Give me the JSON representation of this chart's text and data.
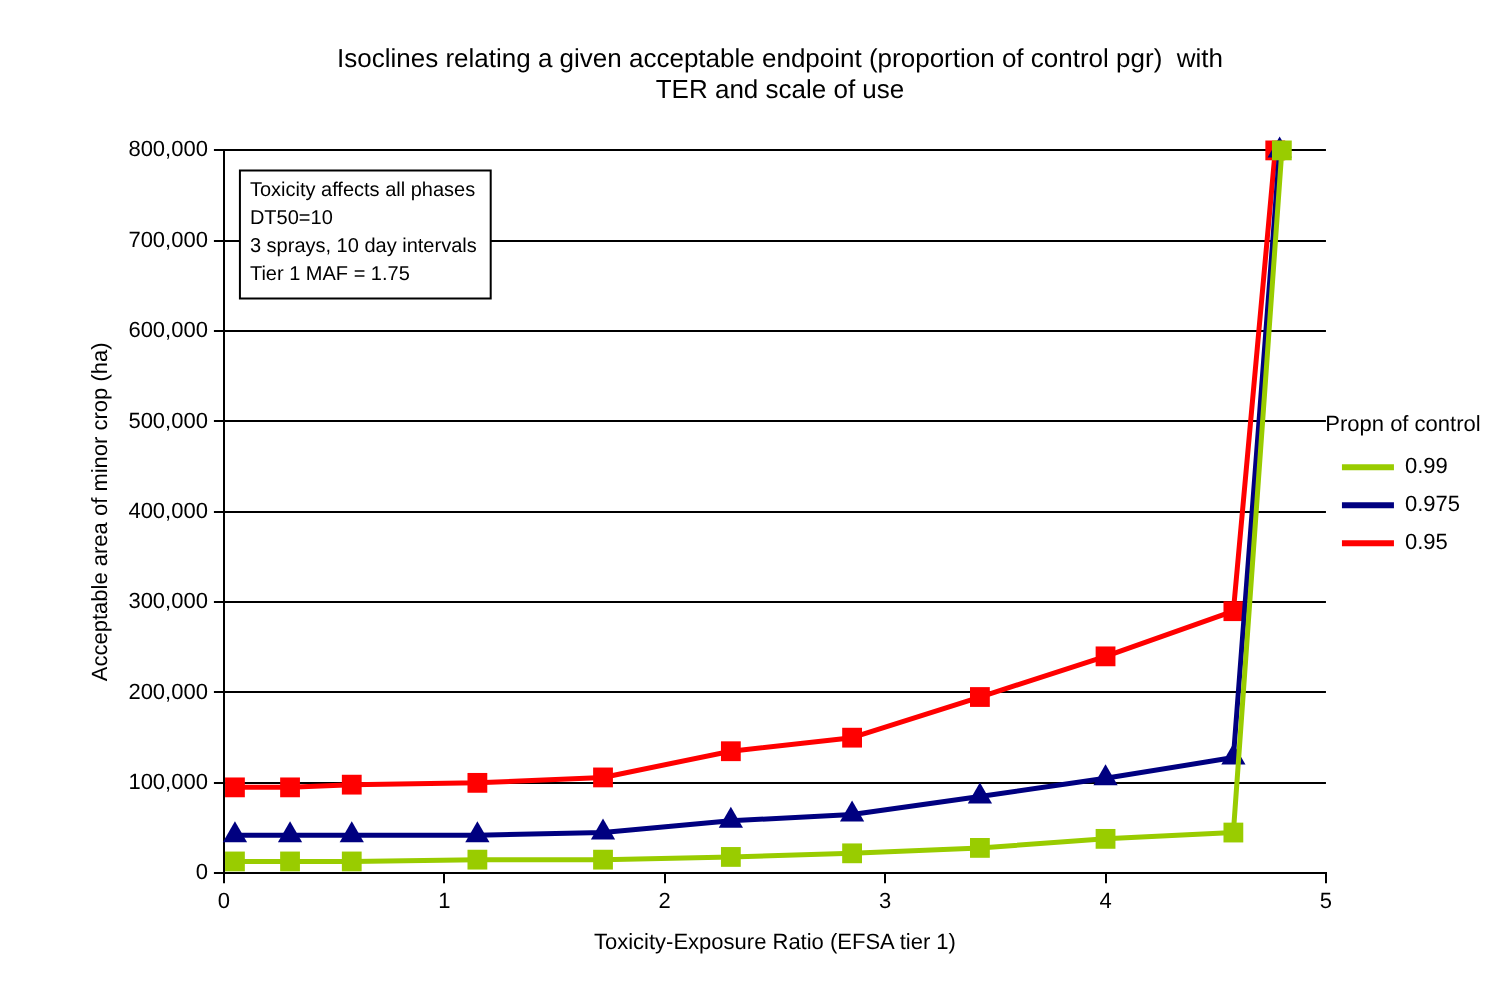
{
  "chart_data": {
    "type": "line",
    "title": "Isoclines relating a given acceptable endpoint (proportion of control pgr)  with TER and scale of use",
    "xlabel": "Toxicity-Exposure Ratio (EFSA tier 1)",
    "ylabel": "Acceptable area of minor crop (ha)",
    "legend_title": "Propn of control",
    "legend": "right",
    "grid": "y",
    "annotations": [
      "Toxicity affects all phases",
      "DT50=10",
      "3 sprays, 10 day intervals",
      "Tier 1 MAF = 1.75"
    ],
    "xlim": [
      0,
      5
    ],
    "xticks": [
      0,
      1,
      2,
      3,
      4,
      5
    ],
    "ylim": [
      0,
      800000
    ],
    "yticks": [
      0,
      {
        "value": 100000,
        "label": "100,000"
      },
      {
        "value": 200000,
        "label": "200,000"
      },
      {
        "value": 300000,
        "label": "300,000"
      },
      {
        "value": 400000,
        "label": "400,000"
      },
      {
        "value": 500000,
        "label": "500,000"
      },
      {
        "value": 600000,
        "label": "600,000"
      },
      {
        "value": 700000,
        "label": "700,000"
      },
      {
        "value": 800000,
        "label": "800,000"
      }
    ],
    "series": [
      {
        "name": "0.99",
        "color": "#99cc00",
        "marker": "square",
        "x": [
          0.05,
          0.3,
          0.58,
          1.15,
          1.72,
          2.3,
          2.85,
          3.43,
          4.0,
          4.58,
          4.8
        ],
        "values": [
          13000,
          13000,
          13000,
          15000,
          15000,
          18000,
          22000,
          28000,
          38000,
          45000,
          800000
        ]
      },
      {
        "name": "0.975",
        "color": "#000080",
        "marker": "triangle",
        "x": [
          0.05,
          0.3,
          0.58,
          1.15,
          1.72,
          2.3,
          2.85,
          3.43,
          4.0,
          4.58,
          4.79
        ],
        "values": [
          42000,
          42000,
          42000,
          42000,
          45000,
          58000,
          65000,
          85000,
          105000,
          128000,
          800000
        ]
      },
      {
        "name": "0.95",
        "color": "#ff0000",
        "marker": "square",
        "x": [
          0.05,
          0.3,
          0.58,
          1.15,
          1.72,
          2.3,
          2.85,
          3.43,
          4.0,
          4.58,
          4.77
        ],
        "values": [
          95000,
          95000,
          98000,
          100000,
          106000,
          135000,
          150000,
          195000,
          240000,
          290000,
          800000
        ]
      }
    ]
  }
}
